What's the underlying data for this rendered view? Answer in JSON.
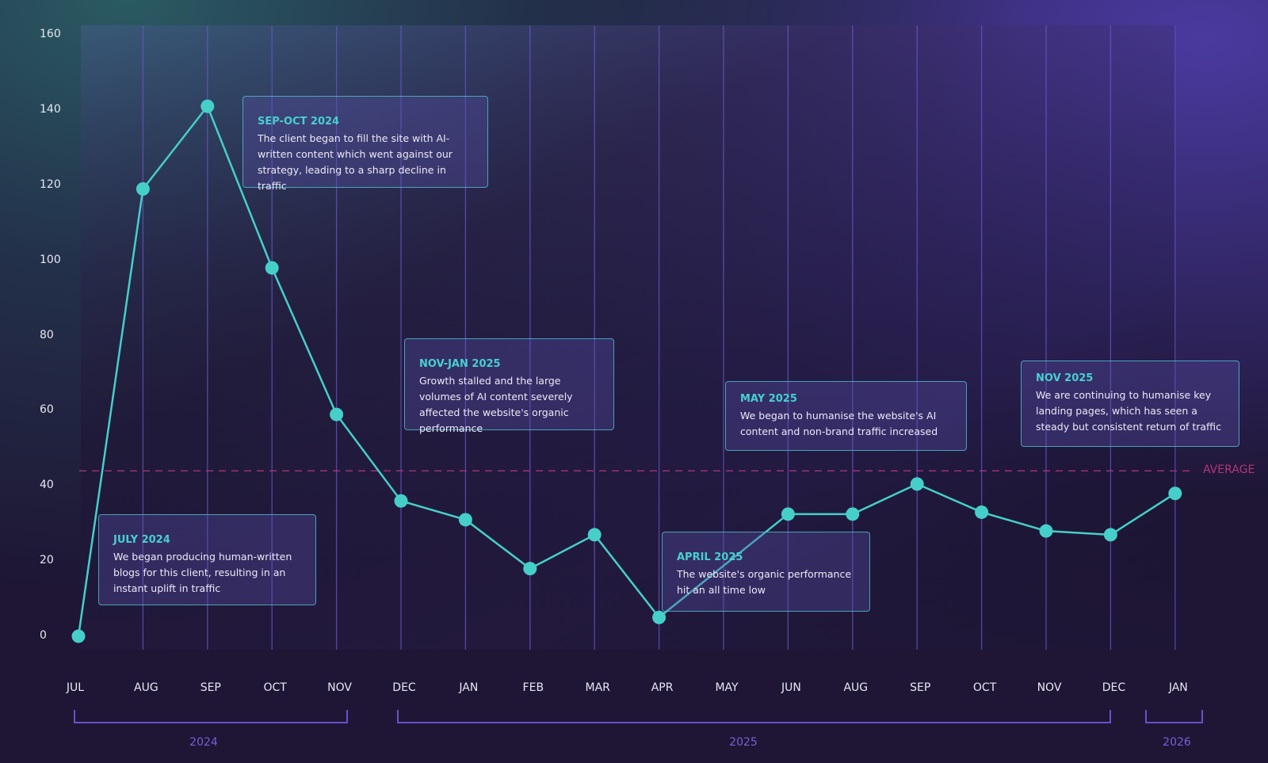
{
  "chart_data": {
    "type": "line",
    "categories": [
      "JUL",
      "AUG",
      "SEP",
      "OCT",
      "NOV",
      "DEC",
      "JAN",
      "FEB",
      "MAR",
      "APR",
      "MAY",
      "JUN",
      "AUG",
      "SEP",
      "OCT",
      "NOV",
      "DEC",
      "JAN"
    ],
    "values": [
      0,
      119,
      141,
      98,
      59,
      36,
      31,
      18,
      27,
      5,
      null,
      32.5,
      32.5,
      40.5,
      33,
      28,
      27,
      38
    ],
    "ylim": [
      0,
      160
    ],
    "yticks": [
      "0",
      "20",
      "40",
      "60",
      "80",
      "100",
      "120",
      "140",
      "160"
    ],
    "grid": "vertical",
    "average": {
      "label": "AVERAGE",
      "value": 44
    },
    "years": [
      {
        "label": "2024"
      },
      {
        "label": "2025"
      },
      {
        "label": "2026"
      }
    ],
    "annotations": [
      {
        "title": "JULY 2024",
        "text": "We began producing human-written blogs for this client, resulting in an instant uplift in traffic"
      },
      {
        "title": "SEP-OCT 2024",
        "text": "The client began to fill the site with AI-written content which went against our strategy, leading to a sharp decline in traffic"
      },
      {
        "title": "NOV-JAN 2025",
        "text": "Growth stalled and the large volumes of AI content severely affected the website's organic performance"
      },
      {
        "title": "APRIL 2025",
        "text": "The website's organic performance hit an all time low"
      },
      {
        "title": "MAY 2025",
        "text": "We began to humanise the website's AI content and non-brand traffic increased"
      },
      {
        "title": "NOV 2025",
        "text": "We are continuing to  humanise key landing pages, which has seen a steady but consistent return of traffic"
      }
    ],
    "colors": {
      "line": "#45cfc8",
      "grid": "#6a55c8",
      "average": "#b0377a",
      "year": "#7a5ed8"
    }
  }
}
